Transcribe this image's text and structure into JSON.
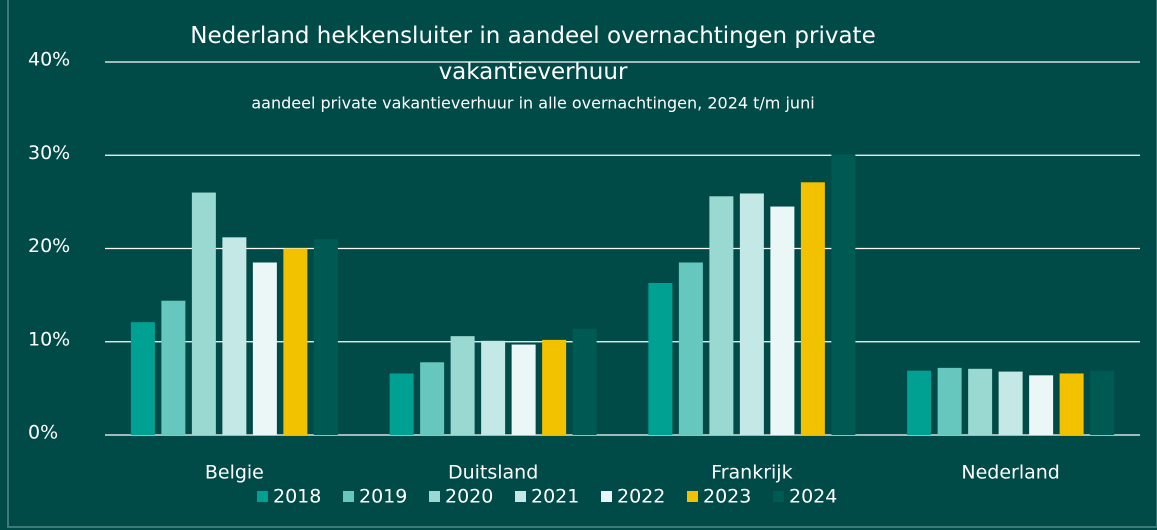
{
  "chart_data": {
    "type": "bar",
    "title": "Nederland hekkensluiter in aandeel overnachtingen private vakantieverhuur",
    "subtitle": "aandeel private vakantieverhuur in alle overnachtingen, 2024 t/m juni",
    "categories": [
      "Belgie",
      "Duitsland",
      "Frankrijk",
      "Nederland"
    ],
    "series": [
      {
        "name": "2018",
        "color": "#00a192",
        "values": [
          12.1,
          6.6,
          16.3,
          6.9
        ]
      },
      {
        "name": "2019",
        "color": "#66c7bf",
        "values": [
          14.4,
          7.8,
          18.5,
          7.2
        ]
      },
      {
        "name": "2020",
        "color": "#9ad8d2",
        "values": [
          26,
          10.6,
          25.6,
          7.1
        ]
      },
      {
        "name": "2021",
        "color": "#c3e8e5",
        "values": [
          21.2,
          10.1,
          25.9,
          6.8
        ]
      },
      {
        "name": "2022",
        "color": "#ebf7f6",
        "values": [
          18.5,
          9.7,
          24.5,
          6.4
        ]
      },
      {
        "name": "2023",
        "color": "#f2c200",
        "values": [
          20,
          10.2,
          27.1,
          6.6
        ]
      },
      {
        "name": "2024",
        "color": "#005a54",
        "values": [
          21,
          11.4,
          30.1,
          6.9
        ]
      }
    ],
    "ylim": [
      0,
      40
    ],
    "yticks": [
      {
        "value": 0,
        "label": "0%"
      },
      {
        "value": 10,
        "label": "10%"
      },
      {
        "value": 20,
        "label": "20%"
      },
      {
        "value": 30,
        "label": "30%"
      },
      {
        "value": 40,
        "label": "40%"
      }
    ],
    "grid": true
  }
}
